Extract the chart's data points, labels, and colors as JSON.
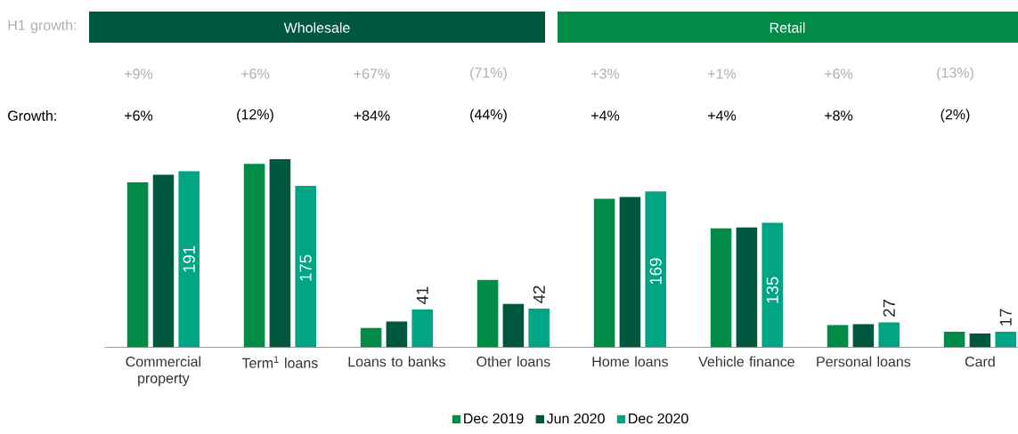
{
  "chart_data": {
    "type": "bar",
    "categories": [
      "Commercial property",
      "Term$^{1}$ loans",
      "Loans to banks",
      "Other loans",
      "Home loans",
      "Vehicle finance",
      "Personal loans",
      "Card"
    ],
    "series": [
      {
        "name": "Dec 2019",
        "color": "#008c47",
        "values": [
          179,
          199,
          21,
          73,
          161,
          129,
          24,
          17
        ]
      },
      {
        "name": "Jun 2020",
        "color": "#00573f",
        "values": [
          187,
          204,
          28,
          47,
          163,
          130,
          25,
          15
        ]
      },
      {
        "name": "Dec 2020",
        "color": "#00a684",
        "values": [
          191,
          175,
          41,
          42,
          169,
          135,
          27,
          17
        ],
        "value_labels": [
          "191",
          "175",
          "41",
          "42",
          "169",
          "135",
          "27",
          "17"
        ]
      }
    ],
    "annotations": [
      "Wholesale",
      "Retail",
      "H1 growth:",
      "+9%",
      "+6%",
      "+67%",
      "(71%)",
      "+3%",
      "+1%",
      "+6%",
      "(13%)",
      "Growth:",
      "+6%",
      "(12%)",
      "+84%",
      "(44%)",
      "+4%",
      "+4%",
      "+8%",
      "(2%)"
    ],
    "legend": "bottom",
    "grid": false,
    "tick_labels": "x"
  }
}
